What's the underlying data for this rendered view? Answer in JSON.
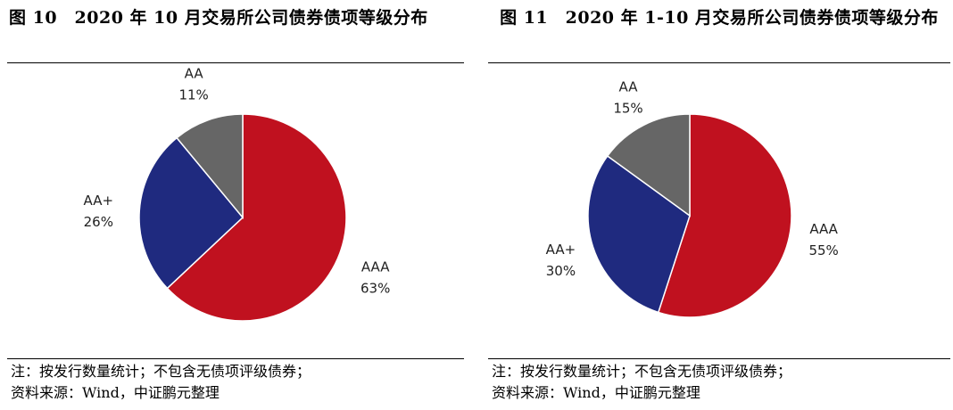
{
  "chart_data": [
    {
      "type": "pie",
      "title": "图 10　2020 年 10 月交易所公司债券债项等级分布",
      "slices": [
        {
          "label": "AAA",
          "value": 63,
          "value_label": "63%",
          "color": "#c0111f"
        },
        {
          "label": "AA+",
          "value": 26,
          "value_label": "26%",
          "color": "#1f2a7f"
        },
        {
          "label": "AA",
          "value": 11,
          "value_label": "11%",
          "color": "#666666"
        }
      ],
      "note": "注：按发行数量统计；不包含无债项评级债券；",
      "source": "资料来源：Wind，中证鹏元整理"
    },
    {
      "type": "pie",
      "title": "图 11　2020 年 1-10 月交易所公司债券债项等级分布",
      "slices": [
        {
          "label": "AAA",
          "value": 55,
          "value_label": "55%",
          "color": "#c0111f"
        },
        {
          "label": "AA+",
          "value": 30,
          "value_label": "30%",
          "color": "#1f2a7f"
        },
        {
          "label": "AA",
          "value": 15,
          "value_label": "15%",
          "color": "#666666"
        }
      ],
      "note": "注：按发行数量统计；不包含无债项评级债券；",
      "source": "资料来源：Wind，中证鹏元整理"
    }
  ]
}
